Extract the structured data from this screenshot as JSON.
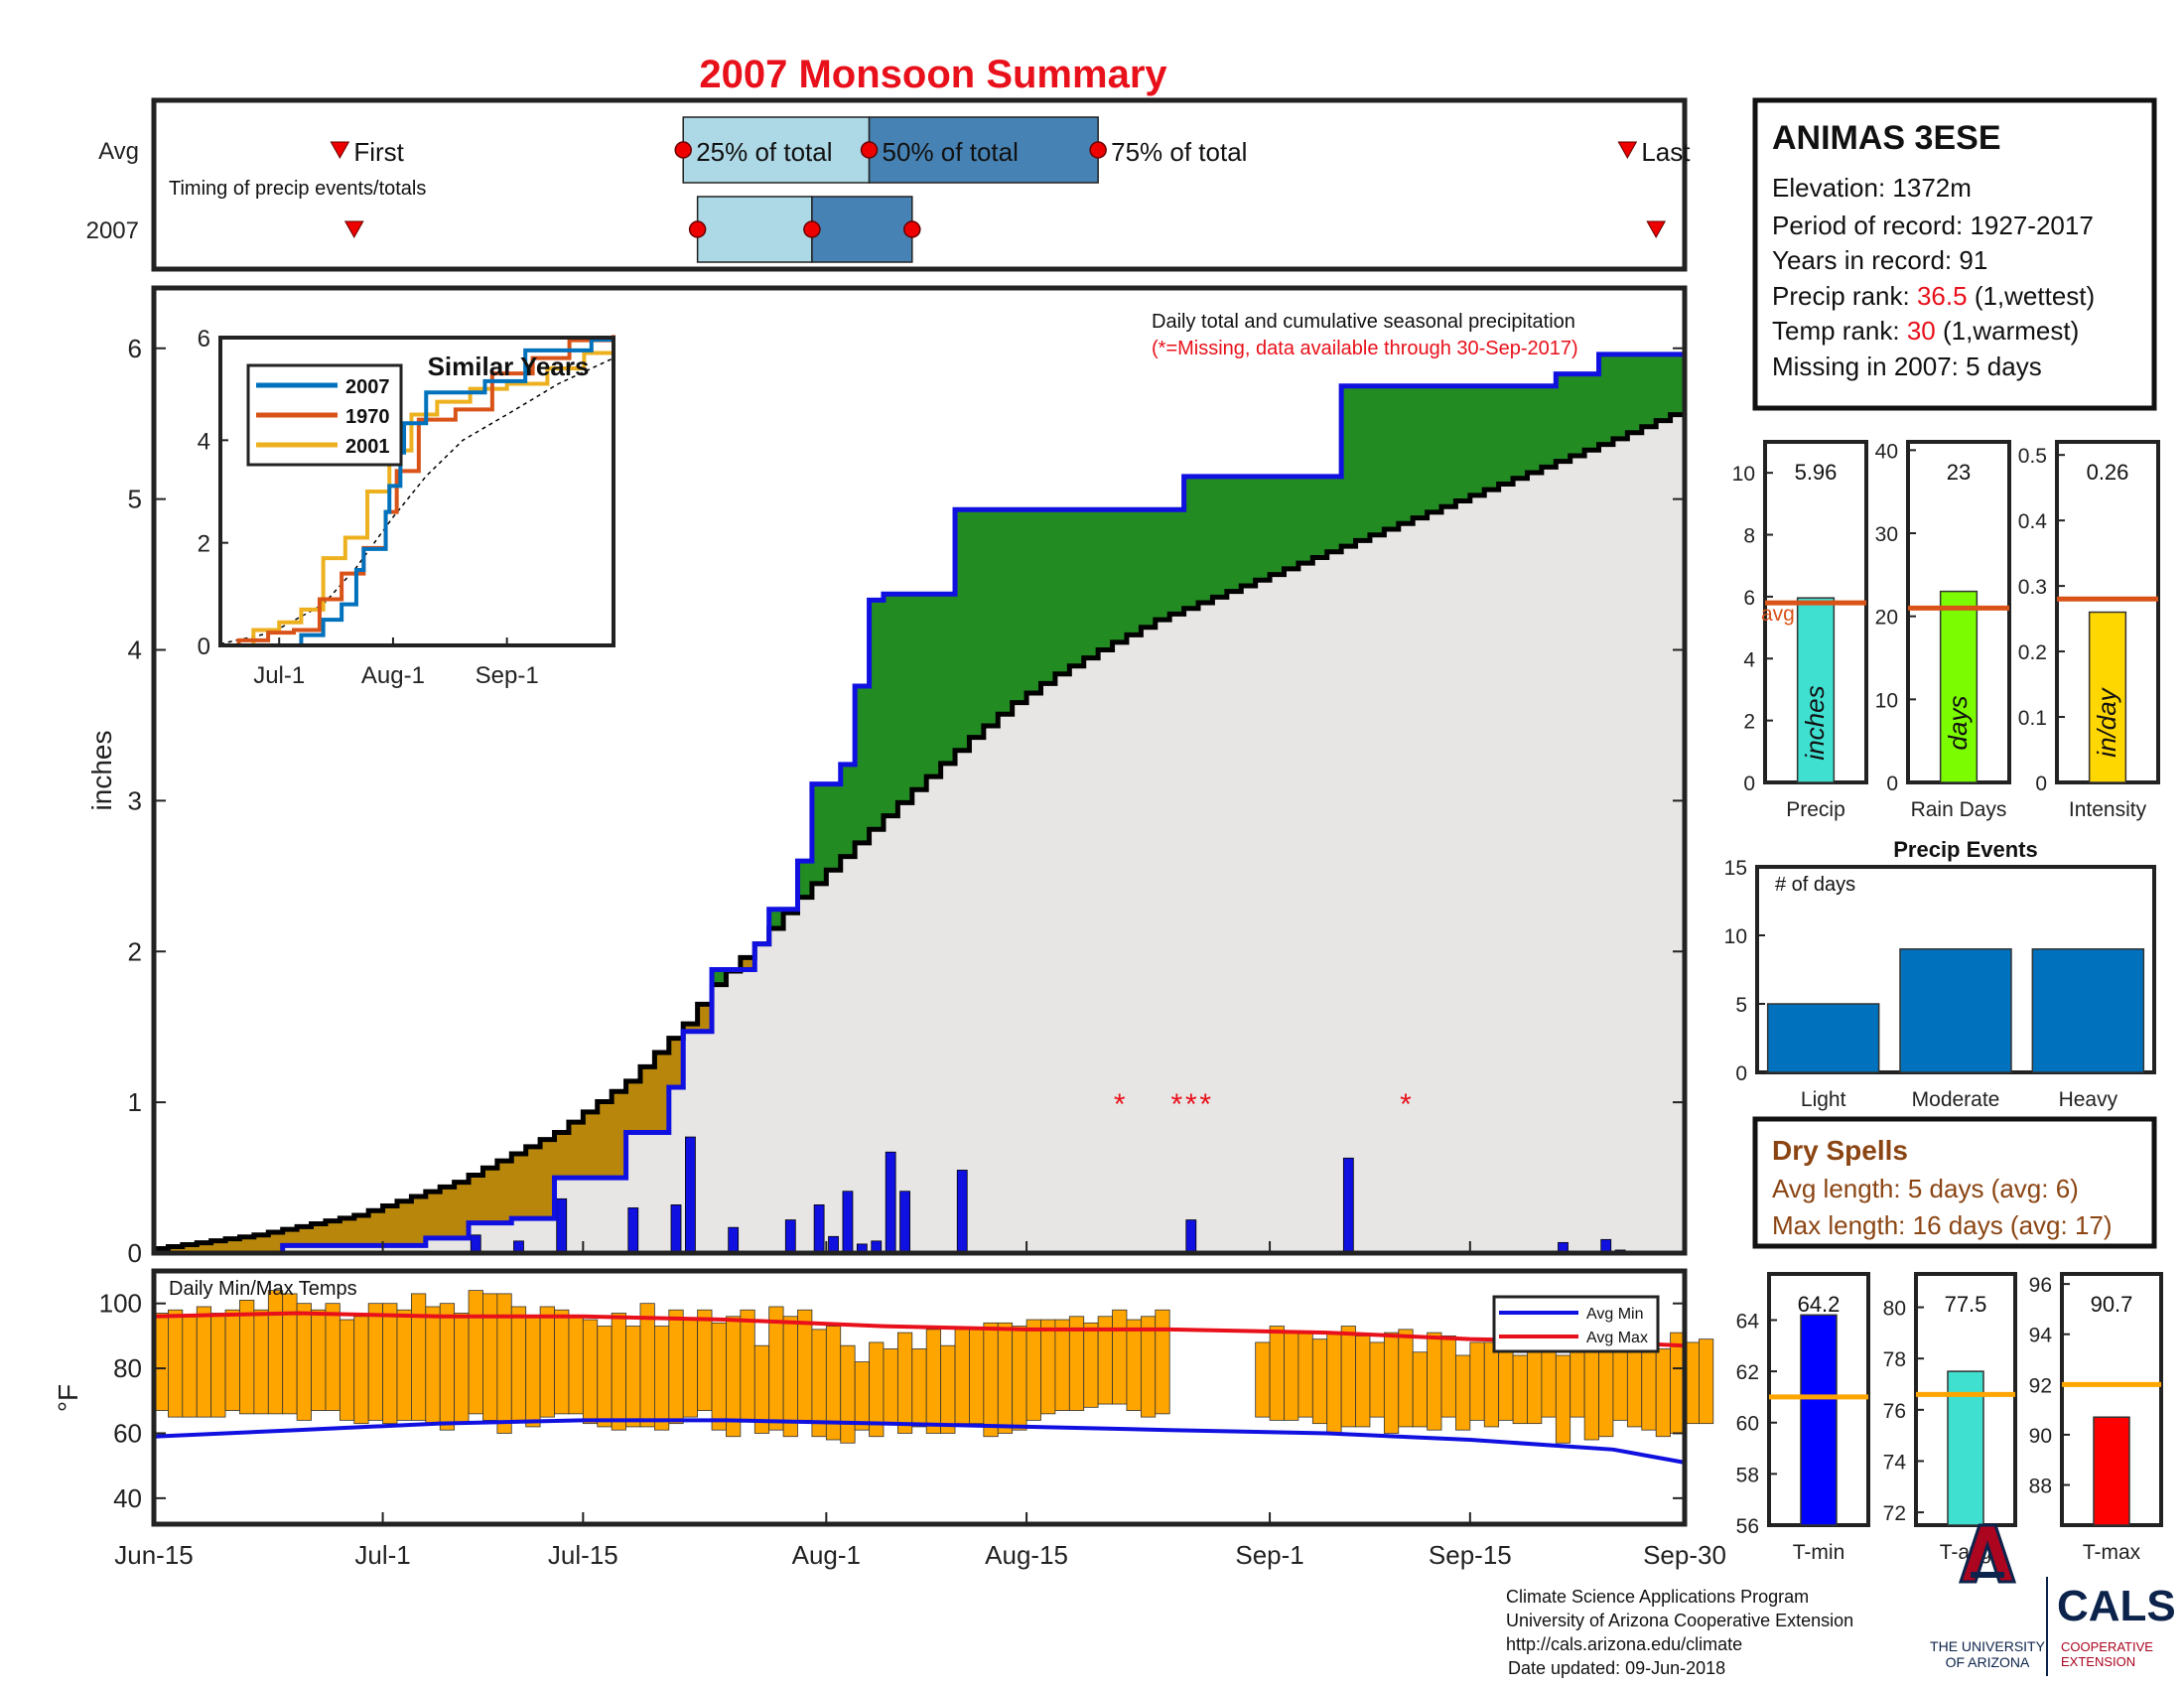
{
  "page": {
    "title": "2007 Monsoon Summary"
  },
  "colors": {
    "title": "#e8101a",
    "frame": "#222222",
    "cum_fill": "#e8e6e4",
    "above_avg": "#228b22",
    "below_avg": "#b8860b",
    "cum_2007": "#1010e0",
    "avg_line": "#000000",
    "daily_bar": "#1010e0",
    "missing": "#e8101a",
    "temp_bar": "#ffa500",
    "avg_max": "#e8101a",
    "avg_min": "#1010e0",
    "box_light": "#add8e6",
    "box_dark": "#4682b4",
    "series_2007": "#0072bd",
    "series_1970": "#d95319",
    "series_2001": "#edb120",
    "precip_bar": "#40e0d0",
    "days_bar": "#7cfc00",
    "intensity_bar": "#ffd700",
    "avg_orange": "#d95319",
    "events_bar": "#0072bd",
    "dry": "#8b4513",
    "temp_avg_line": "#ffa500",
    "tmin": "#0000ff",
    "tavg": "#40e0d0",
    "tmax": "#ff0000",
    "ua_red": "#ab0520",
    "ua_navy": "#0c234b"
  },
  "timing": {
    "label": "Timing of precip events/totals",
    "rows": [
      "Avg",
      "2007"
    ],
    "first_label": "First",
    "q25_label": "25% of total",
    "q50_label": "50% of total",
    "q75_label": "75% of total",
    "last_label": "Last",
    "avg": {
      "first": "2007-06-28",
      "q25": "2007-07-22",
      "q50": "2007-08-04",
      "q75": "2007-08-20",
      "last": "2007-09-26"
    },
    "y2007": {
      "first": "2007-06-29",
      "q25": "2007-07-23",
      "q50": "2007-07-31",
      "q75": "2007-08-07",
      "last": "2007-09-28"
    }
  },
  "station": {
    "name": "ANIMAS 3ESE",
    "elevation_label": "Elevation:",
    "elevation": "1372m",
    "period_label": "Period of record:",
    "period": "1927-2017",
    "years_label": "Years in record:",
    "years": "91",
    "precip_rank_label": "Precip rank:",
    "precip_rank": "36.5",
    "precip_rank_note": "(1,wettest)",
    "temp_rank_label": "Temp rank:",
    "temp_rank": "30",
    "temp_rank_note": "(1,warmest)",
    "missing_label": "Missing in 2007:",
    "missing": "5 days"
  },
  "chart_data": [
    {
      "name": "cumulative_precip",
      "type": "area",
      "title": "Daily total and cumulative seasonal precipitation",
      "subtitle": "(*=Missing, data available through 30-Sep-2017)",
      "ylabel": "inches",
      "xlim": [
        "2007-06-15",
        "2007-09-30"
      ],
      "ylim": [
        0,
        6.4
      ],
      "yticks": [
        0,
        1,
        2,
        3,
        4,
        5,
        6
      ],
      "xticks": [
        "Jun-15",
        "Jul-1",
        "Jul-15",
        "Aug-1",
        "Aug-15",
        "Sep-1",
        "Sep-15",
        "Sep-30"
      ],
      "xtick_dates": [
        "2007-06-15",
        "2007-07-01",
        "2007-07-15",
        "2007-08-01",
        "2007-08-15",
        "2007-09-01",
        "2007-09-15",
        "2007-09-30"
      ],
      "avg_cumulative": {
        "x": [
          "2007-06-15",
          "2007-06-22",
          "2007-06-29",
          "2007-07-06",
          "2007-07-13",
          "2007-07-18",
          "2007-07-20",
          "2007-07-22",
          "2007-07-24",
          "2007-07-27",
          "2007-07-30",
          "2007-08-02",
          "2007-08-05",
          "2007-08-08",
          "2007-08-11",
          "2007-08-14",
          "2007-08-17",
          "2007-08-20",
          "2007-08-24",
          "2007-08-28",
          "2007-09-01",
          "2007-09-05",
          "2007-09-09",
          "2007-09-13",
          "2007-09-17",
          "2007-09-21",
          "2007-09-25",
          "2007-09-30"
        ],
        "y": [
          0.03,
          0.12,
          0.25,
          0.47,
          0.8,
          1.14,
          1.33,
          1.52,
          1.78,
          2.05,
          2.36,
          2.63,
          2.9,
          3.16,
          3.42,
          3.65,
          3.84,
          4.0,
          4.2,
          4.35,
          4.5,
          4.65,
          4.8,
          4.95,
          5.1,
          5.25,
          5.4,
          5.6
        ]
      },
      "cumulative_2007": {
        "x": [
          "2007-06-15",
          "2007-06-24",
          "2007-07-04",
          "2007-07-07",
          "2007-07-10",
          "2007-07-13",
          "2007-07-18",
          "2007-07-21",
          "2007-07-22",
          "2007-07-24",
          "2007-07-27",
          "2007-07-28",
          "2007-07-30",
          "2007-07-31",
          "2007-08-02",
          "2007-08-03",
          "2007-08-04",
          "2007-08-05",
          "2007-08-07",
          "2007-08-10",
          "2007-08-26",
          "2007-09-06",
          "2007-09-21",
          "2007-09-24",
          "2007-09-30"
        ],
        "y": [
          0,
          0.05,
          0.1,
          0.2,
          0.23,
          0.5,
          0.8,
          1.1,
          1.47,
          1.88,
          2.05,
          2.28,
          2.6,
          3.11,
          3.24,
          3.76,
          4.33,
          4.37,
          4.37,
          4.93,
          5.15,
          5.75,
          5.83,
          5.96,
          5.96
        ]
      },
      "daily_precip": {
        "x": [
          "2007-07-07",
          "2007-07-10",
          "2007-07-13",
          "2007-07-18",
          "2007-07-21",
          "2007-07-22",
          "2007-07-25",
          "2007-07-29",
          "2007-07-31",
          "2007-08-01",
          "2007-08-02",
          "2007-08-03",
          "2007-08-04",
          "2007-08-05",
          "2007-08-06",
          "2007-08-10",
          "2007-08-26",
          "2007-09-06",
          "2007-09-21",
          "2007-09-24",
          "2007-09-25"
        ],
        "y": [
          0.12,
          0.08,
          0.36,
          0.3,
          0.32,
          0.77,
          0.17,
          0.22,
          0.32,
          0.11,
          0.41,
          0.06,
          0.08,
          0.67,
          0.41,
          0.55,
          0.22,
          0.63,
          0.07,
          0.09,
          0.02
        ]
      },
      "missing_days": [
        "2007-08-21",
        "2007-08-25",
        "2007-08-26",
        "2007-08-27",
        "2007-09-10"
      ]
    },
    {
      "name": "similar_years",
      "type": "line",
      "title": "Similar Years",
      "xlim": [
        "2007-06-15",
        "2007-09-30"
      ],
      "ylim": [
        0,
        6
      ],
      "yticks": [
        0,
        2,
        4,
        6
      ],
      "xticks": [
        "Jul-1",
        "Aug-1",
        "Sep-1"
      ],
      "xtick_dates": [
        "2007-07-01",
        "2007-08-01",
        "2007-09-01"
      ],
      "avg": {
        "x": [
          "2007-06-15",
          "2007-06-29",
          "2007-07-13",
          "2007-07-22",
          "2007-08-01",
          "2007-08-10",
          "2007-08-20",
          "2007-09-01",
          "2007-09-15",
          "2007-09-30"
        ],
        "y": [
          0.03,
          0.25,
          0.8,
          1.52,
          2.5,
          3.3,
          4.0,
          4.5,
          5.1,
          5.6
        ]
      },
      "series": [
        {
          "name": "2007",
          "x": [
            "2007-06-15",
            "2007-07-07",
            "2007-07-13",
            "2007-07-18",
            "2007-07-22",
            "2007-07-24",
            "2007-07-30",
            "2007-07-31",
            "2007-08-03",
            "2007-08-04",
            "2007-08-10",
            "2007-08-26",
            "2007-09-06",
            "2007-09-24",
            "2007-09-30"
          ],
          "y": [
            0,
            0.2,
            0.5,
            0.8,
            1.47,
            1.88,
            2.6,
            3.11,
            3.76,
            4.33,
            4.93,
            5.15,
            5.75,
            5.96,
            5.96
          ]
        },
        {
          "name": "1970",
          "x": [
            "2007-06-15",
            "2007-06-20",
            "2007-06-28",
            "2007-07-05",
            "2007-07-12",
            "2007-07-18",
            "2007-07-24",
            "2007-07-30",
            "2007-08-02",
            "2007-08-08",
            "2007-08-18",
            "2007-08-28",
            "2007-09-08",
            "2007-09-18",
            "2007-09-30"
          ],
          "y": [
            0,
            0.1,
            0.25,
            0.3,
            0.9,
            1.4,
            1.9,
            2.6,
            3.4,
            4.4,
            4.6,
            5.3,
            5.6,
            5.95,
            6.05
          ]
        },
        {
          "name": "2001",
          "x": [
            "2007-06-15",
            "2007-06-24",
            "2007-07-01",
            "2007-07-07",
            "2007-07-13",
            "2007-07-19",
            "2007-07-25",
            "2007-07-31",
            "2007-08-06",
            "2007-08-13",
            "2007-08-22",
            "2007-09-01",
            "2007-09-12",
            "2007-09-22",
            "2007-09-30"
          ],
          "y": [
            0,
            0.3,
            0.45,
            0.7,
            1.7,
            2.1,
            3.0,
            3.8,
            4.5,
            4.75,
            5.0,
            5.1,
            5.4,
            5.7,
            5.85
          ]
        }
      ]
    },
    {
      "name": "daily_temps",
      "type": "bar",
      "title": "Daily Min/Max Temps",
      "ylabel": "°F",
      "xlim": [
        "2007-06-15",
        "2007-09-30"
      ],
      "ylim": [
        32,
        110
      ],
      "yticks": [
        40,
        60,
        80,
        100
      ],
      "legend": [
        "Avg Min",
        "Avg Max"
      ],
      "legend_position": "top-right",
      "avg_max": {
        "x": [
          "2007-06-15",
          "2007-06-25",
          "2007-07-05",
          "2007-07-15",
          "2007-07-25",
          "2007-08-05",
          "2007-08-15",
          "2007-08-25",
          "2007-09-05",
          "2007-09-15",
          "2007-09-25",
          "2007-09-30"
        ],
        "y": [
          96,
          97,
          96,
          96,
          95,
          93,
          92,
          92,
          91,
          89,
          88,
          87
        ]
      },
      "avg_min": {
        "x": [
          "2007-06-15",
          "2007-06-25",
          "2007-07-05",
          "2007-07-15",
          "2007-07-25",
          "2007-08-05",
          "2007-08-15",
          "2007-08-25",
          "2007-09-05",
          "2007-09-15",
          "2007-09-25",
          "2007-09-30"
        ],
        "y": [
          59,
          61,
          63,
          64,
          64,
          63,
          62,
          61,
          60,
          58,
          55,
          51
        ]
      },
      "min_temps": [
        67,
        65,
        65,
        65,
        65,
        67,
        66,
        66,
        66,
        66,
        64,
        67,
        67,
        64,
        63,
        64,
        63,
        64,
        64,
        63,
        61,
        63,
        66,
        64,
        60,
        64,
        62,
        65,
        66,
        66,
        63,
        62,
        61,
        62,
        62,
        61,
        63,
        65,
        67,
        61,
        59,
        64,
        60,
        61,
        59,
        64,
        59,
        58,
        57,
        61,
        59,
        63,
        60,
        62,
        60,
        60,
        63,
        63,
        59,
        60,
        61,
        64,
        66,
        67,
        67,
        68,
        69,
        69,
        67,
        65,
        66,
        null,
        null,
        null,
        null,
        null,
        null,
        65,
        64,
        64,
        65,
        63,
        60,
        62,
        62,
        65,
        60,
        62,
        62,
        61,
        65,
        61,
        64,
        62,
        64,
        63,
        63,
        65,
        57,
        65,
        58,
        59,
        64,
        62,
        61,
        59,
        60,
        63,
        63
      ],
      "max_temps": [
        97,
        98,
        96,
        99,
        97,
        98,
        101,
        98,
        104,
        103,
        100,
        98,
        100,
        95,
        96,
        100,
        100,
        98,
        103,
        99,
        100,
        97,
        104,
        103,
        103,
        99,
        96,
        99,
        98,
        96,
        95,
        93,
        97,
        93,
        100,
        93,
        98,
        95,
        98,
        94,
        96,
        98,
        87,
        99,
        96,
        98,
        92,
        93,
        87,
        82,
        88,
        86,
        91,
        86,
        92,
        87,
        92,
        92,
        94,
        94,
        93,
        95,
        95,
        95,
        96,
        94,
        96,
        98,
        95,
        96,
        98,
        null,
        null,
        null,
        null,
        null,
        null,
        88,
        93,
        91,
        91,
        89,
        91,
        93,
        90,
        88,
        91,
        92,
        85,
        91,
        90,
        84,
        88,
        88,
        90,
        84,
        87,
        90,
        84,
        95,
        90,
        89,
        91,
        91,
        89,
        86,
        91,
        88,
        89
      ]
    },
    {
      "name": "seasonal_totals",
      "type": "bar",
      "panels": [
        {
          "category": "Precip",
          "value": 5.96,
          "value_label": "5.96",
          "avg": 5.8,
          "unit": "inches",
          "ylim": [
            0,
            11
          ],
          "yticks": [
            0,
            2,
            4,
            6,
            8,
            10
          ],
          "avg_label": "avg"
        },
        {
          "category": "Rain Days",
          "value": 23,
          "value_label": "23",
          "avg": 21,
          "unit": "days",
          "ylim": [
            0,
            41
          ],
          "yticks": [
            0,
            10,
            20,
            30,
            40
          ]
        },
        {
          "category": "Intensity",
          "value": 0.26,
          "value_label": "0.26",
          "avg": 0.28,
          "unit": "in/day",
          "ylim": [
            0,
            0.52
          ],
          "yticks": [
            0,
            0.1,
            0.2,
            0.3,
            0.4,
            0.5
          ]
        }
      ]
    },
    {
      "name": "precip_events",
      "type": "bar",
      "title": "Precip Events",
      "ylabel": "# of days",
      "categories": [
        "Light",
        "Moderate",
        "Heavy"
      ],
      "values": [
        5,
        9,
        9
      ],
      "ylim": [
        0,
        15
      ],
      "yticks": [
        0,
        5,
        10,
        15
      ]
    },
    {
      "name": "temp_summary",
      "type": "bar",
      "panels": [
        {
          "category": "T-min",
          "value": 64.2,
          "value_label": "64.2",
          "avg": 61,
          "ylim": [
            56,
            65.8
          ],
          "yticks": [
            56,
            58,
            60,
            62,
            64
          ]
        },
        {
          "category": "T-avg",
          "value": 77.5,
          "value_label": "77.5",
          "avg": 76.6,
          "ylim": [
            71.5,
            81.3
          ],
          "yticks": [
            72,
            74,
            76,
            78,
            80
          ]
        },
        {
          "category": "T-max",
          "value": 90.7,
          "value_label": "90.7",
          "avg": 92,
          "ylim": [
            86.4,
            96.4
          ],
          "yticks": [
            88,
            90,
            92,
            94,
            96
          ]
        }
      ]
    }
  ],
  "dry_spells": {
    "title": "Dry Spells",
    "avg_length": "Avg length: 5 days (avg: 6)",
    "max_length": "Max length: 16 days (avg: 17)"
  },
  "footer": {
    "line1": "Climate Science Applications Program",
    "line2": "University of Arizona Cooperative Extension",
    "line3": "http://cals.arizona.edu/climate",
    "line4": "Date updated: 09-Jun-2018"
  },
  "logos": {
    "ua_line1": "THE UNIVERSITY",
    "ua_line2": "OF ARIZONA",
    "cals": "CALS",
    "cals_line1": "COOPERATIVE",
    "cals_line2": "EXTENSION"
  }
}
